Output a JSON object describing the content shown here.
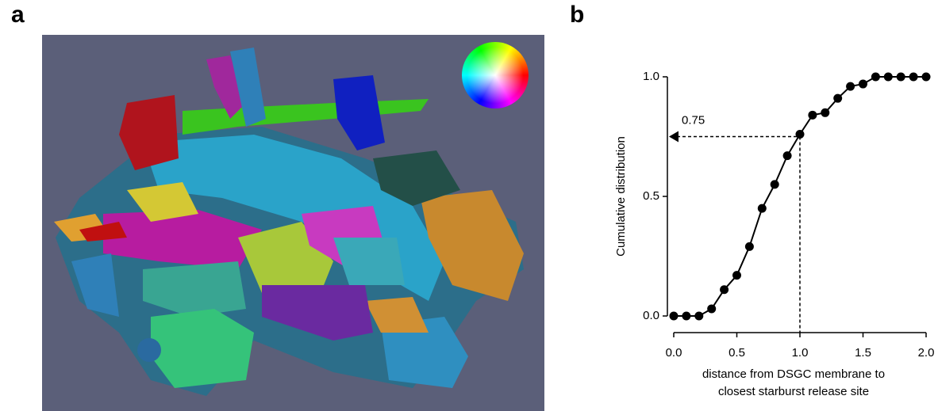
{
  "panel_labels": [
    "a",
    "b"
  ],
  "chart_data": {
    "type": "line",
    "y_label": "Cumulative distribution",
    "x_label": [
      "distance from DSGC membrane to",
      "closest starburst release site"
    ],
    "x": [
      0,
      0.1,
      0.2,
      0.3,
      0.4,
      0.5,
      0.6,
      0.7,
      0.8,
      0.9,
      1.0,
      1.1,
      1.2,
      1.3,
      1.4,
      1.5,
      1.6,
      1.7,
      1.8,
      1.9,
      2.0
    ],
    "series": [
      {
        "color": "#000000",
        "values": [
          0,
          0,
          0,
          0.03,
          0.11,
          0.17,
          0.29,
          0.45,
          0.55,
          0.67,
          0.76,
          0.84,
          0.85,
          0.91,
          0.96,
          0.97,
          1.0,
          1.0,
          1.0,
          1.0,
          1.0
        ]
      }
    ],
    "xlim": [
      0,
      2
    ],
    "ylim": [
      0,
      1
    ],
    "xticks": [
      {
        "value": 0,
        "label": "0.0"
      },
      {
        "value": 0.5,
        "label": "0.5"
      },
      {
        "value": 1,
        "label": "1.0"
      },
      {
        "value": 1.5,
        "label": "1.5"
      },
      {
        "value": 2,
        "label": "2.0"
      }
    ],
    "yticks": [
      {
        "value": 0,
        "label": "0.0"
      },
      {
        "value": 0.5,
        "label": "0.5"
      },
      {
        "value": 1,
        "label": "1.0"
      }
    ],
    "annotation": {
      "label": "0.75",
      "x": 1.0,
      "y": 0.75
    }
  }
}
